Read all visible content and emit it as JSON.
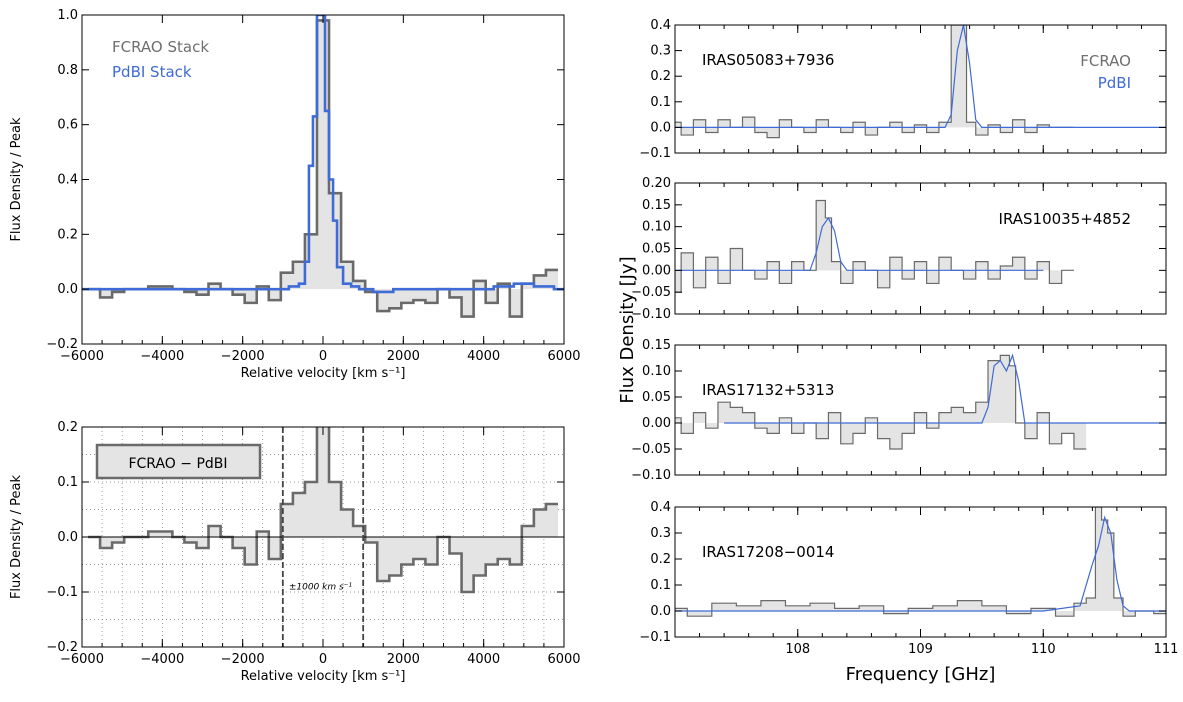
{
  "colors": {
    "fcrao": "#6a6a6a",
    "pdbi": "#3f6bd6",
    "fill": "#e4e4e4",
    "grid": "#555555"
  },
  "chart_data": [
    {
      "id": "stack",
      "type": "line",
      "xlabel": "Relative velocity [km s⁻¹]",
      "ylabel": "Flux Density / Peak",
      "xlim": [
        -6000,
        6000
      ],
      "ylim": [
        -0.2,
        1.0
      ],
      "xticks": [
        -6000,
        -4000,
        -2000,
        0,
        2000,
        4000,
        6000
      ],
      "xtick_labels": [
        "−6000",
        "−4000",
        "−2000",
        "0",
        "2000",
        "4000",
        "6000"
      ],
      "yticks": [
        -0.2,
        0.0,
        0.2,
        0.4,
        0.6,
        0.8,
        1.0
      ],
      "ytick_labels": [
        "−0.2",
        "0.0",
        "0.2",
        "0.4",
        "0.6",
        "0.8",
        "1.0"
      ],
      "legend": [
        "FCRAO Stack",
        "PdBI Stack"
      ],
      "legend_position": "top-left",
      "series": [
        {
          "name": "FCRAO Stack",
          "step": true,
          "filled": true,
          "x": [
            -5700,
            -5400,
            -5100,
            -4800,
            -4500,
            -4200,
            -3900,
            -3600,
            -3300,
            -3000,
            -2700,
            -2400,
            -2100,
            -1800,
            -1500,
            -1200,
            -900,
            -600,
            -300,
            0,
            300,
            600,
            900,
            1200,
            1500,
            1800,
            2100,
            2400,
            2700,
            3000,
            3300,
            3600,
            3900,
            4200,
            4500,
            4800,
            5100,
            5400,
            5700
          ],
          "y": [
            0.0,
            -0.03,
            -0.01,
            0.0,
            0.0,
            0.01,
            0.01,
            0.0,
            -0.01,
            -0.02,
            0.02,
            0.0,
            -0.02,
            -0.05,
            0.01,
            -0.04,
            0.06,
            0.1,
            0.2,
            0.98,
            0.35,
            0.1,
            0.03,
            -0.01,
            -0.08,
            -0.07,
            -0.05,
            -0.04,
            -0.05,
            0.0,
            -0.03,
            -0.1,
            0.03,
            -0.05,
            0.02,
            -0.1,
            0.02,
            0.05,
            0.07
          ]
        },
        {
          "name": "PdBI Stack",
          "step": true,
          "filled": false,
          "x": [
            -6000,
            -4500,
            -3000,
            -2000,
            -1500,
            -1000,
            -700,
            -500,
            -400,
            -300,
            -200,
            -100,
            0,
            100,
            200,
            300,
            400,
            600,
            800,
            1000,
            1500,
            2000,
            3000,
            4000,
            4500,
            5000,
            5500,
            6000
          ],
          "y": [
            0.0,
            0.0,
            0.0,
            0.0,
            0.0,
            0.0,
            0.01,
            0.02,
            0.1,
            0.45,
            0.63,
            1.0,
            1.0,
            0.65,
            0.4,
            0.25,
            0.08,
            0.02,
            0.01,
            0.0,
            -0.01,
            0.0,
            0.0,
            0.0,
            0.01,
            0.02,
            0.01,
            0.0
          ]
        }
      ]
    },
    {
      "id": "residual",
      "type": "line",
      "xlabel": "Relative velocity [km s⁻¹]",
      "ylabel": "Flux Density / Peak",
      "xlim": [
        -6000,
        6000
      ],
      "ylim": [
        -0.2,
        0.2
      ],
      "xticks": [
        -6000,
        -4000,
        -2000,
        0,
        2000,
        4000,
        6000
      ],
      "xtick_labels": [
        "−6000",
        "−4000",
        "−2000",
        "0",
        "2000",
        "4000",
        "6000"
      ],
      "yticks": [
        -0.2,
        -0.1,
        0.0,
        0.1,
        0.2
      ],
      "ytick_labels": [
        "−0.2",
        "−0.1",
        "0.0",
        "0.1",
        "0.2"
      ],
      "grid": true,
      "legend": [
        "FCRAO − PdBI"
      ],
      "legend_position": "top-left",
      "vlines": [
        -1000,
        1000
      ],
      "annotation": "±1000 km s⁻¹",
      "series": [
        {
          "name": "FCRAO − PdBI",
          "step": true,
          "filled": true,
          "x": [
            -5700,
            -5400,
            -5100,
            -4800,
            -4500,
            -4200,
            -3900,
            -3600,
            -3300,
            -3000,
            -2700,
            -2400,
            -2100,
            -1800,
            -1500,
            -1200,
            -900,
            -600,
            -300,
            0,
            300,
            600,
            900,
            1200,
            1500,
            1800,
            2100,
            2400,
            2700,
            3000,
            3300,
            3600,
            3900,
            4200,
            4500,
            4800,
            5100,
            5400,
            5700
          ],
          "y": [
            0.0,
            -0.02,
            -0.01,
            0.0,
            0.0,
            0.01,
            0.01,
            0.0,
            -0.01,
            -0.02,
            0.02,
            0.0,
            -0.02,
            -0.05,
            0.01,
            -0.04,
            0.06,
            0.08,
            0.1,
            0.22,
            0.1,
            0.05,
            0.02,
            -0.01,
            -0.08,
            -0.07,
            -0.05,
            -0.04,
            -0.05,
            0.0,
            -0.03,
            -0.1,
            -0.07,
            -0.05,
            -0.04,
            -0.05,
            0.02,
            0.05,
            0.06
          ]
        }
      ]
    },
    {
      "id": "iras05083",
      "type": "line",
      "title": "IRAS05083+7936",
      "xlim": [
        107,
        111
      ],
      "ylim": [
        -0.1,
        0.4
      ],
      "yticks": [
        -0.1,
        0.0,
        0.1,
        0.2,
        0.3,
        0.4
      ],
      "ytick_labels": [
        "−0.1",
        "0.0",
        "0.1",
        "0.2",
        "0.3",
        "0.4"
      ],
      "xticks": [
        108,
        109,
        110,
        111
      ],
      "legend": [
        "FCRAO",
        "PdBI"
      ],
      "legend_position": "top-right",
      "series": [
        {
          "name": "FCRAO",
          "step": true,
          "filled": true,
          "x": [
            107.0,
            107.1,
            107.2,
            107.3,
            107.4,
            107.5,
            107.6,
            107.7,
            107.8,
            107.9,
            108.0,
            108.1,
            108.2,
            108.3,
            108.4,
            108.5,
            108.6,
            108.7,
            108.8,
            108.9,
            109.0,
            109.1,
            109.2,
            109.3,
            109.35,
            109.4,
            109.5,
            109.6,
            109.7,
            109.8,
            109.9,
            110.0,
            110.1,
            110.2
          ],
          "y": [
            0.02,
            -0.03,
            0.03,
            -0.02,
            0.03,
            0.0,
            0.04,
            -0.02,
            -0.04,
            0.03,
            0.0,
            -0.02,
            0.03,
            0.0,
            -0.02,
            0.02,
            -0.03,
            0.0,
            0.02,
            -0.02,
            0.01,
            -0.02,
            0.02,
            0.4,
            0.4,
            0.02,
            -0.03,
            0.01,
            -0.02,
            0.03,
            -0.02,
            0.01,
            0.0,
            0.0
          ]
        },
        {
          "name": "PdBI",
          "step": false,
          "filled": false,
          "x": [
            107.0,
            108.0,
            109.0,
            109.2,
            109.25,
            109.3,
            109.35,
            109.4,
            109.45,
            109.5,
            110.0,
            110.5,
            111.0
          ],
          "y": [
            0.0,
            0.0,
            0.0,
            0.0,
            0.05,
            0.3,
            0.4,
            0.25,
            0.03,
            0.0,
            0.0,
            0.0,
            0.0
          ]
        }
      ]
    },
    {
      "id": "iras10035",
      "type": "line",
      "title": "IRAS10035+4852",
      "xlim": [
        107,
        111
      ],
      "ylim": [
        -0.1,
        0.2
      ],
      "yticks": [
        -0.1,
        -0.05,
        0.0,
        0.05,
        0.1,
        0.15,
        0.2
      ],
      "ytick_labels": [
        "−0.10",
        "−0.05",
        "0.00",
        "0.05",
        "0.10",
        "0.15",
        "0.20"
      ],
      "xticks": [
        108,
        109,
        110,
        111
      ],
      "series": [
        {
          "name": "FCRAO",
          "step": true,
          "filled": true,
          "x": [
            107.0,
            107.1,
            107.2,
            107.3,
            107.4,
            107.5,
            107.6,
            107.7,
            107.8,
            107.9,
            108.0,
            108.1,
            108.2,
            108.25,
            108.3,
            108.4,
            108.5,
            108.6,
            108.7,
            108.8,
            108.9,
            109.0,
            109.1,
            109.2,
            109.3,
            109.4,
            109.5,
            109.6,
            109.7,
            109.8,
            109.9,
            110.0,
            110.1,
            110.2
          ],
          "y": [
            -0.05,
            0.04,
            -0.04,
            0.03,
            -0.03,
            0.05,
            0.0,
            -0.02,
            0.02,
            -0.03,
            0.02,
            0.0,
            0.16,
            0.12,
            0.02,
            -0.03,
            0.02,
            0.0,
            -0.04,
            0.03,
            -0.02,
            0.02,
            -0.03,
            0.03,
            0.0,
            -0.02,
            0.02,
            -0.02,
            0.01,
            0.03,
            -0.02,
            0.02,
            -0.03,
            0.0
          ]
        },
        {
          "name": "PdBI",
          "step": false,
          "filled": false,
          "x": [
            107.0,
            108.0,
            108.1,
            108.15,
            108.2,
            108.25,
            108.3,
            108.35,
            108.4,
            109.0,
            110.0
          ],
          "y": [
            0.0,
            0.0,
            0.0,
            0.04,
            0.1,
            0.12,
            0.09,
            0.02,
            0.0,
            0.0,
            0.0
          ]
        }
      ]
    },
    {
      "id": "iras17132",
      "type": "line",
      "title": "IRAS17132+5313",
      "xlim": [
        107,
        111
      ],
      "ylim": [
        -0.1,
        0.15
      ],
      "yticks": [
        -0.1,
        -0.05,
        0.0,
        0.05,
        0.1,
        0.15
      ],
      "ytick_labels": [
        "−0.10",
        "−0.05",
        "0.00",
        "0.05",
        "0.10",
        "0.15"
      ],
      "xticks": [
        108,
        109,
        110,
        111
      ],
      "series": [
        {
          "name": "FCRAO",
          "step": true,
          "filled": true,
          "x": [
            107.0,
            107.1,
            107.2,
            107.3,
            107.4,
            107.5,
            107.6,
            107.7,
            107.8,
            107.9,
            108.0,
            108.1,
            108.2,
            108.3,
            108.4,
            108.5,
            108.6,
            108.7,
            108.8,
            108.9,
            109.0,
            109.1,
            109.2,
            109.3,
            109.4,
            109.5,
            109.6,
            109.7,
            109.75,
            109.8,
            109.9,
            110.0,
            110.1,
            110.2,
            110.3
          ],
          "y": [
            0.01,
            -0.02,
            0.02,
            -0.01,
            0.04,
            0.03,
            0.02,
            -0.01,
            -0.02,
            0.01,
            -0.02,
            0.0,
            -0.03,
            0.02,
            -0.04,
            -0.02,
            0.01,
            -0.03,
            -0.05,
            -0.02,
            0.02,
            -0.01,
            0.02,
            0.03,
            0.02,
            0.04,
            0.12,
            0.13,
            0.11,
            0.0,
            -0.03,
            0.02,
            -0.04,
            -0.02,
            -0.05
          ]
        },
        {
          "name": "PdBI",
          "step": false,
          "filled": false,
          "x": [
            107.4,
            108.0,
            109.0,
            109.5,
            109.55,
            109.6,
            109.65,
            109.7,
            109.75,
            109.8,
            109.85,
            110.0,
            110.5,
            111.0
          ],
          "y": [
            0.0,
            0.0,
            0.0,
            0.0,
            0.03,
            0.11,
            0.12,
            0.1,
            0.13,
            0.08,
            0.0,
            0.0,
            0.0,
            0.0
          ]
        }
      ]
    },
    {
      "id": "iras17208",
      "type": "line",
      "title": "IRAS17208−0014",
      "xlabel": "Frequency [GHz]",
      "xlim": [
        107,
        111
      ],
      "ylim": [
        -0.1,
        0.4
      ],
      "yticks": [
        -0.1,
        0.0,
        0.1,
        0.2,
        0.3,
        0.4
      ],
      "ytick_labels": [
        "−0.1",
        "0.0",
        "0.1",
        "0.2",
        "0.3",
        "0.4"
      ],
      "xticks": [
        108,
        109,
        110,
        111
      ],
      "xtick_labels": [
        "108",
        "109",
        "110",
        "111"
      ],
      "series": [
        {
          "name": "FCRAO",
          "step": true,
          "filled": true,
          "x": [
            107.0,
            107.2,
            107.4,
            107.6,
            107.8,
            108.0,
            108.2,
            108.4,
            108.6,
            108.8,
            109.0,
            109.2,
            109.4,
            109.6,
            109.8,
            110.0,
            110.2,
            110.3,
            110.4,
            110.45,
            110.5,
            110.55,
            110.6,
            110.7,
            110.8,
            111.0
          ],
          "y": [
            0.01,
            -0.02,
            0.03,
            0.02,
            0.04,
            0.02,
            0.03,
            0.01,
            0.02,
            -0.01,
            0.01,
            0.02,
            0.04,
            0.02,
            -0.01,
            0.01,
            -0.02,
            0.03,
            0.05,
            0.4,
            0.35,
            0.3,
            0.05,
            -0.02,
            0.0,
            -0.01
          ]
        },
        {
          "name": "PdBI",
          "step": false,
          "filled": false,
          "x": [
            107.0,
            108.0,
            109.0,
            110.0,
            110.3,
            110.4,
            110.45,
            110.5,
            110.55,
            110.6,
            110.65,
            110.7,
            111.0
          ],
          "y": [
            0.0,
            0.0,
            0.0,
            0.0,
            0.02,
            0.18,
            0.25,
            0.36,
            0.3,
            0.12,
            0.02,
            0.0,
            0.0
          ]
        }
      ]
    }
  ],
  "shared_labels": {
    "right_ylabel": "Flux Density [Jy]",
    "right_xlabel": "Frequency [GHz]"
  }
}
